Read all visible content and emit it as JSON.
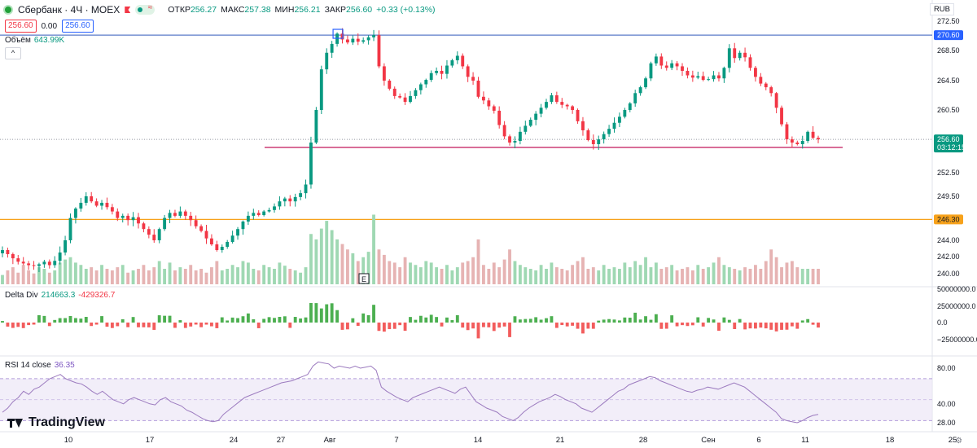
{
  "header": {
    "symbol": "Сбербанк · 4Ч · MOEX",
    "open_label": "ОТКР",
    "open": "256.27",
    "high_label": "МАКС",
    "high": "257.38",
    "low_label": "МИН",
    "low": "256.21",
    "close_label": "ЗАКР",
    "close": "256.60",
    "change": "+0.33 (+0.13%)",
    "sell": "256.60",
    "spread": "0.00",
    "buy": "256.60"
  },
  "currency": "RUB",
  "volume_label": "Объём",
  "volume_value": "643.99K",
  "collapse_icon": "^",
  "delta_label": "Delta Div",
  "delta_v1": "214663.3",
  "delta_v2": "-429326.7",
  "rsi_label": "RSI 14 close",
  "rsi_value": "36.35",
  "brand": "TradingView",
  "colors": {
    "up": "#089981",
    "down": "#f23645",
    "blue_line": "#5b7bc8",
    "orange_line": "#f7a21b",
    "red_line": "#c2185b",
    "rsi": "#9c7bbf"
  },
  "chart_data": {
    "type": "candlestick",
    "y_ticks": [
      "272.50",
      "268.50",
      "264.50",
      "260.50",
      "256.50",
      "252.50",
      "249.50",
      "246.00",
      "244.00",
      "242.00",
      "240.00"
    ],
    "x_ticks": [
      "10",
      "17",
      "24",
      "27",
      "Авг",
      "7",
      "14",
      "21",
      "28",
      "Сен",
      "6",
      "11",
      "18",
      "25"
    ],
    "price_tags": [
      {
        "label": "270.60",
        "color": "#2962ff"
      },
      {
        "label": "256.60",
        "sub": "03:12:15",
        "color": "#089981"
      },
      {
        "label": "246.30",
        "color": "#f7a21b"
      }
    ],
    "hlines": [
      {
        "price": 270.6,
        "color": "#5b7bc8"
      },
      {
        "price": 246.3,
        "color": "#f7a21b"
      },
      {
        "price": 255.6,
        "color": "#c2185b",
        "from_index": 82
      }
    ],
    "last_price": 256.6,
    "ohlc_path": [
      242.8,
      242.3,
      241.8,
      241.4,
      241.2,
      241.0,
      240.9,
      241.1,
      241.4,
      241.0,
      241.5,
      242.5,
      244.0,
      246.5,
      247.8,
      248.6,
      249.5,
      248.8,
      248.2,
      248.6,
      248.0,
      247.4,
      246.5,
      246.8,
      246.2,
      246.6,
      245.8,
      245.2,
      244.6,
      244.0,
      245.2,
      246.5,
      247.2,
      246.8,
      247.4,
      246.8,
      246.2,
      245.5,
      245.0,
      244.2,
      243.5,
      242.8,
      243.2,
      243.8,
      244.5,
      245.2,
      246.0,
      246.8,
      247.2,
      246.9,
      247.4,
      247.6,
      248.1,
      248.8,
      249.2,
      248.8,
      249.4,
      249.9,
      251.0,
      256.2,
      260.5,
      266.0,
      268.2,
      269.4,
      270.8,
      270.0,
      269.6,
      270.1,
      269.7,
      269.9,
      270.3,
      270.6,
      266.4,
      264.5,
      263.4,
      262.4,
      262.2,
      261.6,
      262.4,
      263.2,
      264.0,
      264.6,
      265.5,
      265.8,
      265.4,
      266.5,
      267.2,
      267.8,
      266.4,
      265.0,
      264.5,
      262.3,
      261.8,
      261.0,
      260.4,
      258.5,
      257.0,
      256.2,
      256.4,
      257.6,
      258.4,
      259.2,
      260.0,
      260.8,
      261.6,
      262.5,
      261.6,
      261.2,
      261.0,
      260.5,
      259.0,
      257.8,
      256.5,
      256.0,
      256.6,
      257.3,
      258.0,
      258.8,
      259.6,
      260.5,
      261.4,
      262.8,
      263.6,
      264.8,
      266.8,
      267.7,
      266.5,
      266.2,
      266.8,
      266.4,
      265.8,
      265.2,
      264.9,
      265.1,
      264.6,
      264.7,
      265.2,
      264.8,
      266.2,
      268.8,
      267.5,
      268.2,
      267.6,
      266.2,
      265.0,
      264.1,
      263.6,
      262.8,
      260.8,
      258.6,
      256.6,
      256.2,
      256.0,
      256.4,
      257.6,
      256.8,
      256.6
    ],
    "volume": [
      0.12,
      0.18,
      0.22,
      0.15,
      0.25,
      0.18,
      0.14,
      0.22,
      0.2,
      0.15,
      0.18,
      0.28,
      0.32,
      0.35,
      0.28,
      0.25,
      0.2,
      0.22,
      0.18,
      0.25,
      0.2,
      0.18,
      0.22,
      0.25,
      0.15,
      0.18,
      0.2,
      0.25,
      0.18,
      0.22,
      0.3,
      0.2,
      0.28,
      0.18,
      0.22,
      0.2,
      0.25,
      0.18,
      0.2,
      0.15,
      0.22,
      0.3,
      0.18,
      0.2,
      0.25,
      0.22,
      0.3,
      0.28,
      0.2,
      0.18,
      0.25,
      0.22,
      0.2,
      0.28,
      0.24,
      0.2,
      0.18,
      0.15,
      0.22,
      0.65,
      0.58,
      0.72,
      0.82,
      0.7,
      0.58,
      0.52,
      0.45,
      0.4,
      0.3,
      0.35,
      0.42,
      0.9,
      0.45,
      0.38,
      0.3,
      0.28,
      0.22,
      0.35,
      0.28,
      0.25,
      0.22,
      0.3,
      0.28,
      0.22,
      0.2,
      0.25,
      0.18,
      0.22,
      0.28,
      0.3,
      0.35,
      0.58,
      0.25,
      0.2,
      0.28,
      0.22,
      0.32,
      0.45,
      0.3,
      0.25,
      0.22,
      0.2,
      0.18,
      0.25,
      0.2,
      0.28,
      0.22,
      0.2,
      0.18,
      0.25,
      0.3,
      0.35,
      0.2,
      0.22,
      0.18,
      0.25,
      0.2,
      0.22,
      0.2,
      0.28,
      0.22,
      0.3,
      0.25,
      0.35,
      0.22,
      0.28,
      0.2,
      0.22,
      0.25,
      0.18,
      0.2,
      0.22,
      0.18,
      0.25,
      0.2,
      0.22,
      0.28,
      0.35,
      0.25,
      0.22,
      0.2,
      0.18,
      0.22,
      0.2,
      0.25,
      0.2,
      0.3,
      0.45,
      0.35,
      0.22,
      0.28,
      0.3,
      0.22,
      0.2
    ],
    "rsi": [
      38,
      42,
      48,
      52,
      58,
      55,
      60,
      62,
      66,
      70,
      72,
      74,
      70,
      68,
      66,
      65,
      62,
      58,
      55,
      58,
      54,
      50,
      48,
      46,
      50,
      52,
      50,
      48,
      46,
      45,
      50,
      52,
      48,
      46,
      44,
      40,
      38,
      35,
      32,
      30,
      29,
      30,
      36,
      40,
      44,
      48,
      52,
      54,
      56,
      58,
      60,
      62,
      64,
      66,
      67,
      68,
      70,
      72,
      74,
      82,
      86,
      85,
      84,
      80,
      82,
      81,
      80,
      82,
      80,
      81,
      82,
      78,
      62,
      58,
      55,
      52,
      50,
      48,
      52,
      54,
      56,
      58,
      60,
      62,
      60,
      58,
      56,
      60,
      62,
      55,
      48,
      45,
      42,
      40,
      38,
      34,
      32,
      30,
      33,
      38,
      42,
      45,
      48,
      50,
      52,
      55,
      53,
      50,
      48,
      46,
      42,
      40,
      38,
      42,
      46,
      50,
      54,
      58,
      60,
      64,
      66,
      68,
      70,
      72,
      71,
      68,
      66,
      64,
      62,
      60,
      58,
      57,
      59,
      60,
      62,
      61,
      60,
      62,
      64,
      66,
      64,
      62,
      58,
      54,
      50,
      46,
      42,
      38,
      32,
      30,
      29,
      28,
      30,
      33,
      35,
      36
    ]
  }
}
